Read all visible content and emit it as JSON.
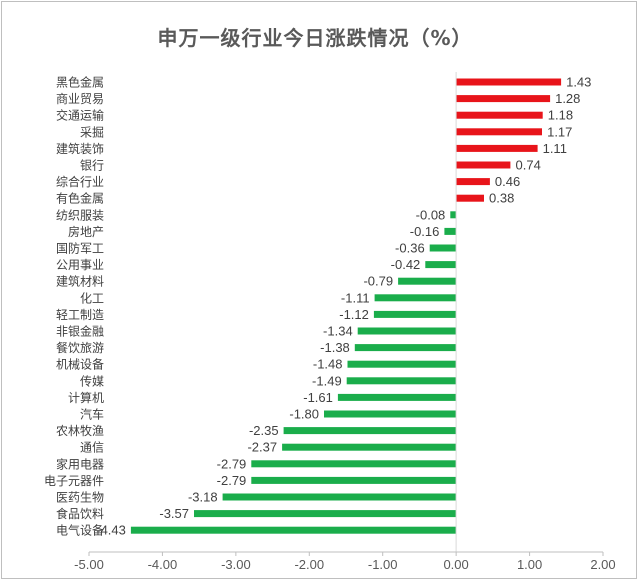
{
  "chart_data": {
    "type": "bar",
    "orientation": "horizontal",
    "title": "申万一级行业今日涨跌情况（%）",
    "categories": [
      "黑色金属",
      "商业贸易",
      "交通运输",
      "采掘",
      "建筑装饰",
      "银行",
      "综合行业",
      "有色金属",
      "纺织服装",
      "房地产",
      "国防军工",
      "公用事业",
      "建筑材料",
      "化工",
      "轻工制造",
      "非银金融",
      "餐饮旅游",
      "机械设备",
      "传媒",
      "计算机",
      "汽车",
      "农林牧渔",
      "通信",
      "家用电器",
      "电子元器件",
      "医药生物",
      "食品饮料",
      "电气设备"
    ],
    "values": [
      1.43,
      1.28,
      1.18,
      1.17,
      1.11,
      0.74,
      0.46,
      0.38,
      -0.08,
      -0.16,
      -0.36,
      -0.42,
      -0.79,
      -1.11,
      -1.12,
      -1.34,
      -1.38,
      -1.48,
      -1.49,
      -1.61,
      -1.8,
      -2.35,
      -2.37,
      -2.79,
      -2.79,
      -3.18,
      -3.57,
      -4.43
    ],
    "value_labels": [
      "1.43",
      "1.28",
      "1.18",
      "1.17",
      "1.11",
      "0.74",
      "0.46",
      "0.38",
      "-0.08",
      "-0.16",
      "-0.36",
      "-0.42",
      "-0.79",
      "-1.11",
      "-1.12",
      "-1.34",
      "-1.38",
      "-1.48",
      "-1.49",
      "-1.61",
      "-1.80",
      "-2.35",
      "-2.37",
      "-2.79",
      "-2.79",
      "-3.18",
      "-3.57",
      "-4.43"
    ],
    "xlim": [
      -5,
      2
    ],
    "x_ticks": [
      "-5.00",
      "-4.00",
      "-3.00",
      "-2.00",
      "-1.00",
      "0.00",
      "1.00",
      "2.00"
    ],
    "x_tick_values": [
      -5,
      -4,
      -3,
      -2,
      -1,
      0,
      1,
      2
    ],
    "grid": false,
    "colors": {
      "positive": "#e8141a",
      "negative": "#1aad4b"
    }
  }
}
